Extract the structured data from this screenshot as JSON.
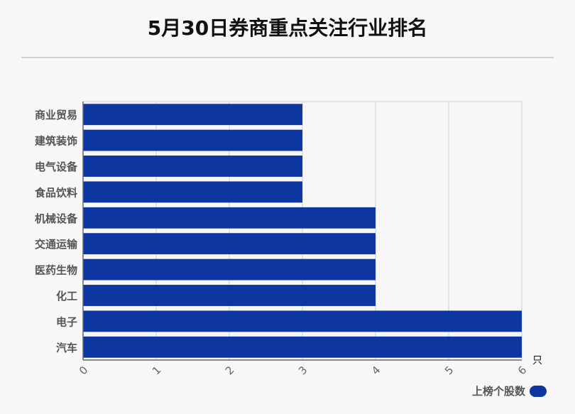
{
  "colors": {
    "bar": "#0e36a0",
    "grid": "#d0d0d0",
    "axis": "#666666",
    "label": "#555555"
  },
  "chart_data": {
    "type": "bar",
    "orientation": "horizontal",
    "title": "5月30日券商重点关注行业排名",
    "categories": [
      "商业贸易",
      "建筑装饰",
      "电气设备",
      "食品饮料",
      "机械设备",
      "交通运输",
      "医药生物",
      "化工",
      "电子",
      "汽车"
    ],
    "series": [
      {
        "name": "上榜个股数",
        "values": [
          3,
          3,
          3,
          3,
          4,
          4,
          4,
          4,
          6,
          6
        ]
      }
    ],
    "xlim": [
      0,
      6
    ],
    "xticks": [
      "0",
      "1",
      "2",
      "3",
      "4",
      "5",
      "6"
    ],
    "xunit": "只",
    "grid": true,
    "legend_position": "bottom-right"
  }
}
